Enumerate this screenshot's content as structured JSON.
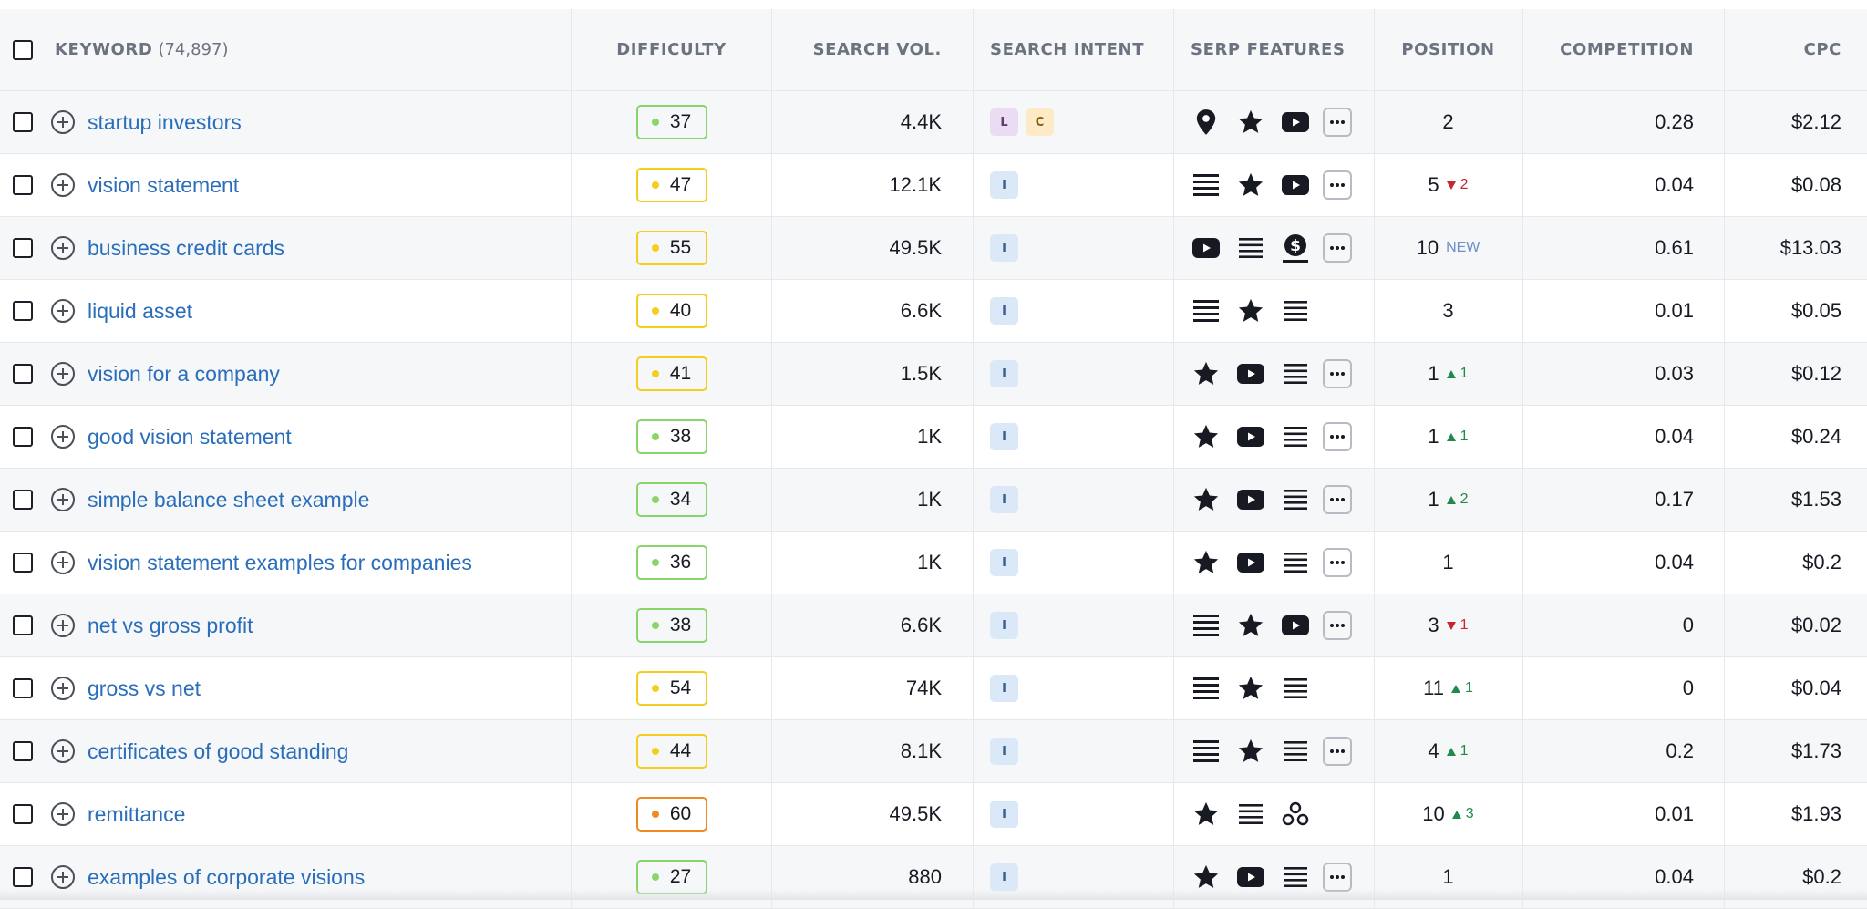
{
  "header": {
    "keyword": "KEYWORD",
    "keyword_count": "(74,897)",
    "difficulty": "DIFFICULTY",
    "search_vol": "SEARCH VOL.",
    "search_intent": "SEARCH INTENT",
    "serp_features": "SERP FEATURES",
    "position": "POSITION",
    "competition": "COMPETITION",
    "cpc": "CPC"
  },
  "colors": {
    "easy": "#8ad56a",
    "medium": "#f4cd1d",
    "hard": "#f08a1f",
    "intent_I": "#dbe8f7",
    "intent_L": "#eadcf3",
    "intent_C": "#fdebc8"
  },
  "rows": [
    {
      "keyword": "startup investors",
      "kd": "37",
      "kd_level": "easy",
      "volume": "4.4K",
      "intents": [
        "L",
        "C"
      ],
      "features": [
        "map-pin",
        "star",
        "video"
      ],
      "more": true,
      "position": "2",
      "change": "",
      "change_dir": "",
      "cpc": "$2.12",
      "competition": "0.28"
    },
    {
      "keyword": "vision statement",
      "kd": "47",
      "kd_level": "medium",
      "volume": "12.1K",
      "intents": [
        "I"
      ],
      "features": [
        "snippet",
        "star",
        "video"
      ],
      "more": true,
      "position": "5",
      "change": "2",
      "change_dir": "down",
      "cpc": "$0.08",
      "competition": "0.04"
    },
    {
      "keyword": "business credit cards",
      "kd": "55",
      "kd_level": "medium",
      "volume": "49.5K",
      "intents": [
        "I"
      ],
      "features": [
        "video",
        "list",
        "ads"
      ],
      "more": true,
      "position": "10",
      "change": "NEW",
      "change_dir": "new",
      "cpc": "$13.03",
      "competition": "0.61"
    },
    {
      "keyword": "liquid asset",
      "kd": "40",
      "kd_level": "medium",
      "volume": "6.6K",
      "intents": [
        "I"
      ],
      "features": [
        "snippet",
        "star",
        "list"
      ],
      "more": false,
      "position": "3",
      "change": "",
      "change_dir": "",
      "cpc": "$0.05",
      "competition": "0.01"
    },
    {
      "keyword": "vision for a company",
      "kd": "41",
      "kd_level": "medium",
      "volume": "1.5K",
      "intents": [
        "I"
      ],
      "features": [
        "star",
        "video",
        "list"
      ],
      "more": true,
      "position": "1",
      "change": "1",
      "change_dir": "up",
      "cpc": "$0.12",
      "competition": "0.03"
    },
    {
      "keyword": "good vision statement",
      "kd": "38",
      "kd_level": "easy",
      "volume": "1K",
      "intents": [
        "I"
      ],
      "features": [
        "star",
        "video",
        "list"
      ],
      "more": true,
      "position": "1",
      "change": "1",
      "change_dir": "up",
      "cpc": "$0.24",
      "competition": "0.04"
    },
    {
      "keyword": "simple balance sheet example",
      "kd": "34",
      "kd_level": "easy",
      "volume": "1K",
      "intents": [
        "I"
      ],
      "features": [
        "star",
        "video",
        "list"
      ],
      "more": true,
      "position": "1",
      "change": "2",
      "change_dir": "up",
      "cpc": "$1.53",
      "competition": "0.17"
    },
    {
      "keyword": "vision statement examples for companies",
      "kd": "36",
      "kd_level": "easy",
      "volume": "1K",
      "intents": [
        "I"
      ],
      "features": [
        "star",
        "video",
        "list"
      ],
      "more": true,
      "position": "1",
      "change": "",
      "change_dir": "",
      "cpc": "$0.2",
      "competition": "0.04"
    },
    {
      "keyword": "net vs gross profit",
      "kd": "38",
      "kd_level": "easy",
      "volume": "6.6K",
      "intents": [
        "I"
      ],
      "features": [
        "snippet",
        "star",
        "video"
      ],
      "more": true,
      "position": "3",
      "change": "1",
      "change_dir": "down",
      "cpc": "$0.02",
      "competition": "0"
    },
    {
      "keyword": "gross vs net",
      "kd": "54",
      "kd_level": "medium",
      "volume": "74K",
      "intents": [
        "I"
      ],
      "features": [
        "snippet",
        "star",
        "list"
      ],
      "more": false,
      "position": "11",
      "change": "1",
      "change_dir": "up",
      "cpc": "$0.04",
      "competition": "0"
    },
    {
      "keyword": "certificates of good standing",
      "kd": "44",
      "kd_level": "medium",
      "volume": "8.1K",
      "intents": [
        "I"
      ],
      "features": [
        "snippet",
        "star",
        "list"
      ],
      "more": true,
      "position": "4",
      "change": "1",
      "change_dir": "up",
      "cpc": "$1.73",
      "competition": "0.2"
    },
    {
      "keyword": "remittance",
      "kd": "60",
      "kd_level": "hard",
      "volume": "49.5K",
      "intents": [
        "I"
      ],
      "features": [
        "star",
        "list",
        "carousel"
      ],
      "more": false,
      "position": "10",
      "change": "3",
      "change_dir": "up",
      "cpc": "$1.93",
      "competition": "0.01"
    },
    {
      "keyword": "examples of corporate visions",
      "kd": "27",
      "kd_level": "easy",
      "volume": "880",
      "intents": [
        "I"
      ],
      "features": [
        "star",
        "video",
        "list"
      ],
      "more": true,
      "position": "1",
      "change": "",
      "change_dir": "",
      "cpc": "$0.2",
      "competition": "0.04"
    }
  ]
}
